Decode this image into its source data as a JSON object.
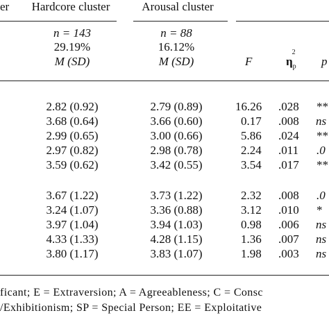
{
  "header": {
    "col_partial": "er",
    "hardcore": {
      "title": "Hardcore cluster",
      "n": "n = 143",
      "pct": "29.19%",
      "msd": "M (SD)"
    },
    "arousal": {
      "title": "Arousal cluster",
      "n": "n = 88",
      "pct": "16.12%",
      "msd": "M (SD)"
    },
    "f_label": "F",
    "eta_symbol": "η",
    "eta_sub": "p",
    "eta_sup": "2",
    "p_label": "p"
  },
  "group1": [
    {
      "hardcore": "2.82 (0.92)",
      "arousal": "2.79 (0.89)",
      "f": "16.26",
      "eta": ".028",
      "p": "***"
    },
    {
      "hardcore": "3.68 (0.64)",
      "arousal": "3.66 (0.60)",
      "f": "0.17",
      "eta": ".008",
      "p": "ns"
    },
    {
      "hardcore": "2.99 (0.65)",
      "arousal": "3.00 (0.66)",
      "f": "5.86",
      "eta": ".024",
      "p": "***"
    },
    {
      "hardcore": "2.97 (0.82)",
      "arousal": "2.98 (0.78)",
      "f": "2.24",
      "eta": ".011",
      "p": ".0"
    },
    {
      "hardcore": "3.59 (0.62)",
      "arousal": "3.42 (0.55)",
      "f": "3.54",
      "eta": ".017",
      "p": "**"
    }
  ],
  "group2": [
    {
      "hardcore": "3.67 (1.22)",
      "arousal": "3.73 (1.22)",
      "f": "2.32",
      "eta": ".008",
      "p": ".0"
    },
    {
      "hardcore": "3.24 (1.07)",
      "arousal": "3.36 (0.88)",
      "f": "3.12",
      "eta": ".010",
      "p": "*"
    },
    {
      "hardcore": "3.97 (1.04)",
      "arousal": "3.94 (1.03)",
      "f": "0.98",
      "eta": ".006",
      "p": "ns"
    },
    {
      "hardcore": "4.33 (1.33)",
      "arousal": "4.28 (1.15)",
      "f": "1.36",
      "eta": ".007",
      "p": "ns"
    },
    {
      "hardcore": "3.80 (1.17)",
      "arousal": "3.83 (1.07)",
      "f": "1.98",
      "eta": ".003",
      "p": "ns"
    }
  ],
  "footnote": {
    "line1": "ficant; E = Extraversion; A = Agreeableness; C = Consc",
    "line2": "/Exhibitionism; SP = Special Person; EE = Exploitative"
  }
}
